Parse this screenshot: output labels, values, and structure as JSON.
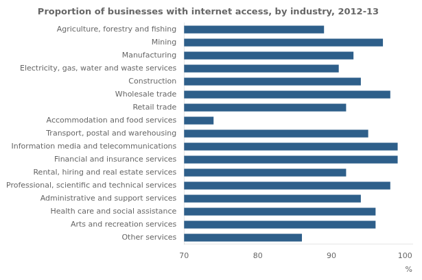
{
  "chart_data": {
    "type": "bar",
    "orientation": "horizontal",
    "title": "Proportion of businesses with internet access, by industry, 2012-13",
    "categories": [
      "Agriculture, forestry and fishing",
      "Mining",
      "Manufacturing",
      "Electricity, gas, water and waste services",
      "Construction",
      "Wholesale trade",
      "Retail trade",
      "Accommodation and food services",
      "Transport, postal and warehousing",
      "Information media and telecommunications",
      "Financial and insurance services",
      "Rental, hiring and real estate services",
      "Professional, scientific and technical services",
      "Administrative and support services",
      "Health care and social assistance",
      "Arts and recreation services",
      "Other services"
    ],
    "values": [
      89,
      97,
      93,
      91,
      94,
      98,
      92,
      74,
      95,
      99,
      99,
      92,
      98,
      94,
      96,
      96,
      86
    ],
    "color": "#2E5F8A",
    "xlim": [
      70,
      101
    ],
    "xticks": [
      70,
      80,
      90,
      100
    ],
    "xlabel": "%",
    "grid": false
  }
}
